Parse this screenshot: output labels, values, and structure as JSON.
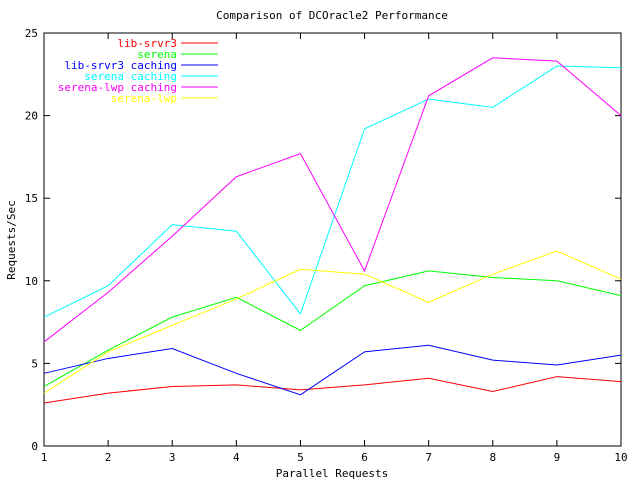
{
  "chart_data": {
    "type": "line",
    "title": "Comparison of DCOracle2 Performance",
    "xlabel": "Parallel Requests",
    "ylabel": "Requests/Sec",
    "xlim": [
      1,
      10
    ],
    "ylim": [
      0,
      25
    ],
    "xticks": [
      1,
      2,
      3,
      4,
      5,
      6,
      7,
      8,
      9,
      10
    ],
    "yticks": [
      0,
      5,
      10,
      15,
      20,
      25
    ],
    "grid": false,
    "legend_position": "top-left",
    "x": [
      1,
      2,
      3,
      4,
      5,
      6,
      7,
      8,
      9,
      10
    ],
    "series": [
      {
        "name": "lib-srvr3",
        "color": "#ff0000",
        "values": [
          2.6,
          3.2,
          3.6,
          3.7,
          3.4,
          3.7,
          4.1,
          3.3,
          4.2,
          3.9
        ]
      },
      {
        "name": "serena",
        "color": "#00ff00",
        "values": [
          3.6,
          5.8,
          7.8,
          9.0,
          7.0,
          9.7,
          10.6,
          10.2,
          10.0,
          9.1
        ]
      },
      {
        "name": "lib-srvr3 caching",
        "color": "#0000ff",
        "values": [
          4.4,
          5.3,
          5.9,
          4.4,
          3.1,
          5.7,
          6.1,
          5.2,
          4.9,
          5.5
        ]
      },
      {
        "name": "serena caching",
        "color": "#00ffff",
        "values": [
          7.8,
          9.7,
          13.4,
          13.0,
          8.0,
          19.2,
          21.0,
          20.5,
          23.0,
          22.9
        ]
      },
      {
        "name": "serena-lwp caching",
        "color": "#ff00ff",
        "values": [
          6.3,
          9.3,
          12.7,
          16.3,
          17.7,
          10.6,
          21.2,
          23.5,
          23.3,
          20.0
        ]
      },
      {
        "name": "serena-lwp",
        "color": "#ffff00",
        "values": [
          3.2,
          5.7,
          7.3,
          8.9,
          10.7,
          10.4,
          8.7,
          10.4,
          11.8,
          10.1
        ]
      }
    ]
  }
}
